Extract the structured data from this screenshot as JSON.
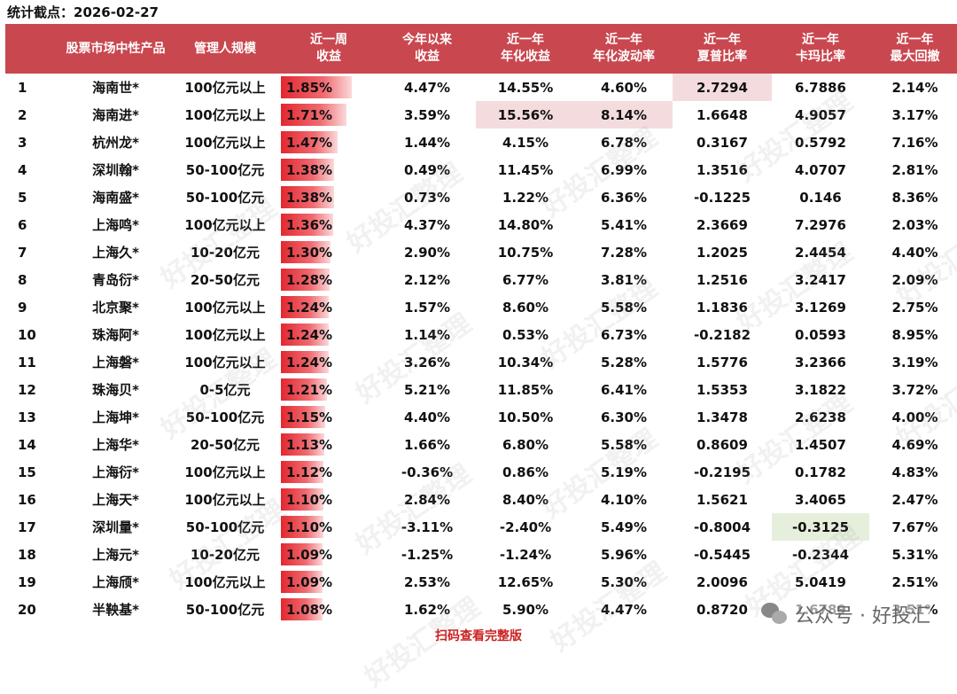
{
  "header": {
    "label": "统计截点：2026-02-27"
  },
  "table": {
    "columns": [
      "",
      "股票市场中性产品",
      "管理人规模",
      "近一周\n收益",
      "今年以来\n收益",
      "近一年\n年化收益",
      "近一年\n年化波动率",
      "近一年\n夏普比率",
      "近一年\n卡玛比率",
      "近一年\n最大回撤"
    ],
    "rows": [
      {
        "rank": "1",
        "name": "海南世*",
        "scale": "100亿元以上",
        "week": "1.85%",
        "week_value": 1.85,
        "ytd": "4.47%",
        "ann_return": "14.55%",
        "ann_vol": "4.60%",
        "sharpe": "2.7294",
        "calmar": "6.7886",
        "mdd": "2.14%"
      },
      {
        "rank": "2",
        "name": "海南进*",
        "scale": "100亿元以上",
        "week": "1.71%",
        "week_value": 1.71,
        "ytd": "3.59%",
        "ann_return": "15.56%",
        "ann_vol": "8.14%",
        "sharpe": "1.6648",
        "calmar": "4.9057",
        "mdd": "3.17%"
      },
      {
        "rank": "3",
        "name": "杭州龙*",
        "scale": "100亿元以上",
        "week": "1.47%",
        "week_value": 1.47,
        "ytd": "1.44%",
        "ann_return": "4.15%",
        "ann_vol": "6.78%",
        "sharpe": "0.3167",
        "calmar": "0.5792",
        "mdd": "7.16%"
      },
      {
        "rank": "4",
        "name": "深圳翰*",
        "scale": "50-100亿元",
        "week": "1.38%",
        "week_value": 1.38,
        "ytd": "0.49%",
        "ann_return": "11.45%",
        "ann_vol": "6.99%",
        "sharpe": "1.3516",
        "calmar": "4.0707",
        "mdd": "2.81%"
      },
      {
        "rank": "5",
        "name": "海南盛*",
        "scale": "50-100亿元",
        "week": "1.38%",
        "week_value": 1.38,
        "ytd": "0.73%",
        "ann_return": "1.22%",
        "ann_vol": "6.36%",
        "sharpe": "-0.1225",
        "calmar": "0.146",
        "mdd": "8.36%"
      },
      {
        "rank": "6",
        "name": "上海鸣*",
        "scale": "100亿元以上",
        "week": "1.36%",
        "week_value": 1.36,
        "ytd": "4.37%",
        "ann_return": "14.80%",
        "ann_vol": "5.41%",
        "sharpe": "2.3669",
        "calmar": "7.2976",
        "mdd": "2.03%"
      },
      {
        "rank": "7",
        "name": "上海久*",
        "scale": "10-20亿元",
        "week": "1.30%",
        "week_value": 1.3,
        "ytd": "2.90%",
        "ann_return": "10.75%",
        "ann_vol": "7.28%",
        "sharpe": "1.2025",
        "calmar": "2.4454",
        "mdd": "4.40%"
      },
      {
        "rank": "8",
        "name": "青岛衍*",
        "scale": "20-50亿元",
        "week": "1.28%",
        "week_value": 1.28,
        "ytd": "2.12%",
        "ann_return": "6.77%",
        "ann_vol": "3.81%",
        "sharpe": "1.2516",
        "calmar": "3.2417",
        "mdd": "2.09%"
      },
      {
        "rank": "9",
        "name": "北京聚*",
        "scale": "100亿元以上",
        "week": "1.24%",
        "week_value": 1.24,
        "ytd": "1.57%",
        "ann_return": "8.60%",
        "ann_vol": "5.58%",
        "sharpe": "1.1836",
        "calmar": "3.1269",
        "mdd": "2.75%"
      },
      {
        "rank": "10",
        "name": "珠海阿*",
        "scale": "100亿元以上",
        "week": "1.24%",
        "week_value": 1.24,
        "ytd": "1.14%",
        "ann_return": "0.53%",
        "ann_vol": "6.73%",
        "sharpe": "-0.2182",
        "calmar": "0.0593",
        "mdd": "8.95%"
      },
      {
        "rank": "11",
        "name": "上海磐*",
        "scale": "100亿元以上",
        "week": "1.24%",
        "week_value": 1.24,
        "ytd": "3.26%",
        "ann_return": "10.34%",
        "ann_vol": "5.28%",
        "sharpe": "1.5776",
        "calmar": "3.2366",
        "mdd": "3.19%"
      },
      {
        "rank": "12",
        "name": "珠海贝*",
        "scale": "0-5亿元",
        "week": "1.21%",
        "week_value": 1.21,
        "ytd": "5.21%",
        "ann_return": "11.85%",
        "ann_vol": "6.41%",
        "sharpe": "1.5353",
        "calmar": "3.1822",
        "mdd": "3.72%"
      },
      {
        "rank": "13",
        "name": "上海坤*",
        "scale": "50-100亿元",
        "week": "1.15%",
        "week_value": 1.15,
        "ytd": "4.40%",
        "ann_return": "10.50%",
        "ann_vol": "6.30%",
        "sharpe": "1.3478",
        "calmar": "2.6238",
        "mdd": "4.00%"
      },
      {
        "rank": "14",
        "name": "上海华*",
        "scale": "20-50亿元",
        "week": "1.13%",
        "week_value": 1.13,
        "ytd": "1.66%",
        "ann_return": "6.80%",
        "ann_vol": "5.58%",
        "sharpe": "0.8609",
        "calmar": "1.4507",
        "mdd": "4.69%"
      },
      {
        "rank": "15",
        "name": "上海衍*",
        "scale": "100亿元以上",
        "week": "1.12%",
        "week_value": 1.12,
        "ytd": "-0.36%",
        "ann_return": "0.86%",
        "ann_vol": "5.19%",
        "sharpe": "-0.2195",
        "calmar": "0.1782",
        "mdd": "4.83%"
      },
      {
        "rank": "16",
        "name": "上海天*",
        "scale": "100亿元以上",
        "week": "1.10%",
        "week_value": 1.1,
        "ytd": "2.84%",
        "ann_return": "8.40%",
        "ann_vol": "4.10%",
        "sharpe": "1.5621",
        "calmar": "3.4065",
        "mdd": "2.47%"
      },
      {
        "rank": "17",
        "name": "深圳量*",
        "scale": "50-100亿元",
        "week": "1.10%",
        "week_value": 1.1,
        "ytd": "-3.11%",
        "ann_return": "-2.40%",
        "ann_vol": "5.49%",
        "sharpe": "-0.8004",
        "calmar": "-0.3125",
        "mdd": "7.67%"
      },
      {
        "rank": "18",
        "name": "上海元*",
        "scale": "10-20亿元",
        "week": "1.09%",
        "week_value": 1.09,
        "ytd": "-1.25%",
        "ann_return": "-1.24%",
        "ann_vol": "5.96%",
        "sharpe": "-0.5445",
        "calmar": "-0.2344",
        "mdd": "5.31%"
      },
      {
        "rank": "19",
        "name": "上海颀*",
        "scale": "100亿元以上",
        "week": "1.09%",
        "week_value": 1.09,
        "ytd": "2.53%",
        "ann_return": "12.65%",
        "ann_vol": "5.30%",
        "sharpe": "2.0096",
        "calmar": "5.0419",
        "mdd": "2.51%"
      },
      {
        "rank": "20",
        "name": "半鞅基*",
        "scale": "50-100亿元",
        "week": "1.08%",
        "week_value": 1.08,
        "ytd": "1.62%",
        "ann_return": "5.90%",
        "ann_vol": "4.47%",
        "sharpe": "0.8720",
        "calmar": "1.6789",
        "mdd": "3.51%"
      }
    ],
    "highlights": [
      {
        "row": 0,
        "key": "sharpe",
        "color": "#f4dcde"
      },
      {
        "row": 1,
        "key": "ann_return",
        "color": "#f4dcde"
      },
      {
        "row": 1,
        "key": "ann_vol",
        "color": "#f4dcde"
      },
      {
        "row": 16,
        "key": "calmar",
        "color": "#e6efdc"
      }
    ],
    "header_color": "#c9474f",
    "bar_color": "#e3272f"
  },
  "watermark": "好投汇整理",
  "footer": {
    "link": "扫码查看完整版"
  },
  "account": {
    "icon": "wechat-icon",
    "label": "公众号 · 好投汇"
  }
}
